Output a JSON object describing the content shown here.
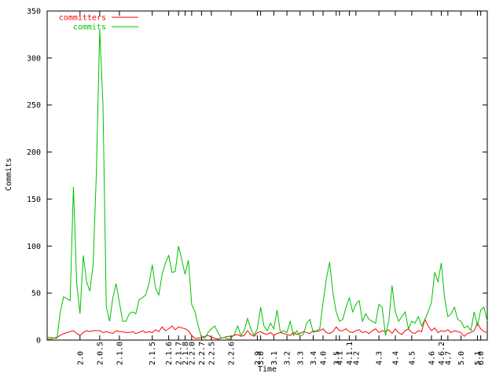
{
  "chart_data": {
    "type": "line",
    "x_label": "Time",
    "y_label": "Commits",
    "categories": [
      null,
      null,
      null,
      null,
      null,
      null,
      null,
      null,
      null,
      null,
      "2.0",
      null,
      null,
      null,
      null,
      null,
      "2.0.5",
      null,
      null,
      null,
      null,
      null,
      "2.1.0",
      null,
      null,
      null,
      null,
      null,
      null,
      null,
      null,
      null,
      "2.1.5",
      null,
      null,
      null,
      null,
      "2.1.6",
      null,
      null,
      "2.1.7",
      null,
      "2.1.8",
      null,
      "2.2.0",
      null,
      null,
      "2.2.7",
      null,
      null,
      "2.2.5",
      null,
      null,
      null,
      null,
      null,
      "2.2.6",
      null,
      null,
      null,
      null,
      null,
      null,
      null,
      "2.9",
      "3.0",
      null,
      null,
      null,
      "3.1",
      null,
      null,
      null,
      "3.2",
      null,
      null,
      null,
      "3.3",
      null,
      null,
      null,
      "3.4",
      null,
      null,
      "4.0",
      null,
      null,
      null,
      "3.5",
      "4.1",
      null,
      null,
      "4.1.1",
      null,
      "4.2",
      null,
      null,
      null,
      null,
      null,
      null,
      "4.3",
      null,
      null,
      null,
      null,
      "4.4",
      null,
      null,
      null,
      null,
      "4.5",
      null,
      null,
      null,
      null,
      null,
      "4.6",
      null,
      null,
      "4.6.2",
      null,
      "4.7",
      null,
      null,
      null,
      "5.0",
      null,
      null,
      null,
      null,
      "5.1",
      "6.0",
      null,
      null
    ],
    "series": [
      {
        "name": "committers",
        "color": "#ff0000",
        "values": [
          1,
          1,
          2,
          3,
          5,
          7,
          8,
          9,
          10,
          7,
          5,
          8,
          10,
          9,
          10,
          10,
          10,
          8,
          9,
          8,
          7,
          10,
          9,
          9,
          8,
          8,
          9,
          7,
          8,
          10,
          8,
          9,
          8,
          11,
          9,
          14,
          10,
          12,
          15,
          11,
          14,
          13,
          12,
          10,
          5,
          2,
          2,
          3,
          4,
          5,
          3,
          2,
          1,
          2,
          3,
          4,
          4,
          5,
          6,
          4,
          5,
          10,
          6,
          4,
          8,
          9,
          7,
          6,
          8,
          5,
          7,
          8,
          7,
          6,
          5,
          8,
          6,
          7,
          9,
          8,
          7,
          10,
          9,
          10,
          12,
          8,
          7,
          9,
          14,
          10,
          10,
          12,
          9,
          8,
          10,
          11,
          8,
          9,
          7,
          10,
          12,
          8,
          10,
          9,
          11,
          7,
          12,
          8,
          6,
          10,
          12,
          8,
          7,
          10,
          9,
          22,
          15,
          10,
          13,
          8,
          10,
          9,
          11,
          8,
          10,
          9,
          8,
          4,
          7,
          8,
          10,
          18,
          12,
          9,
          8
        ]
      },
      {
        "name": "commits",
        "color": "#00c000",
        "values": [
          3,
          3,
          2,
          2,
          30,
          46,
          44,
          42,
          163,
          60,
          28,
          90,
          62,
          52,
          80,
          180,
          330,
          250,
          35,
          20,
          45,
          60,
          40,
          20,
          20,
          28,
          30,
          28,
          43,
          45,
          48,
          60,
          80,
          55,
          48,
          70,
          82,
          90,
          72,
          73,
          100,
          85,
          70,
          85,
          38,
          30,
          15,
          3,
          2,
          8,
          12,
          15,
          8,
          2,
          3,
          1,
          2,
          6,
          15,
          5,
          10,
          23,
          12,
          5,
          12,
          35,
          15,
          10,
          18,
          12,
          32,
          8,
          10,
          8,
          20,
          5,
          10,
          4,
          6,
          18,
          22,
          8,
          10,
          12,
          40,
          65,
          83,
          50,
          30,
          20,
          22,
          35,
          45,
          30,
          38,
          42,
          20,
          28,
          22,
          20,
          18,
          38,
          35,
          5,
          20,
          58,
          30,
          20,
          25,
          30,
          12,
          20,
          18,
          25,
          15,
          22,
          30,
          40,
          72,
          62,
          82,
          45,
          25,
          28,
          35,
          22,
          20,
          13,
          15,
          10,
          30,
          15,
          32,
          35,
          20
        ]
      }
    ],
    "ylim": [
      0,
      350
    ],
    "yticks": [
      0,
      50,
      100,
      150,
      200,
      250,
      300,
      350
    ],
    "legend": "top-left"
  }
}
